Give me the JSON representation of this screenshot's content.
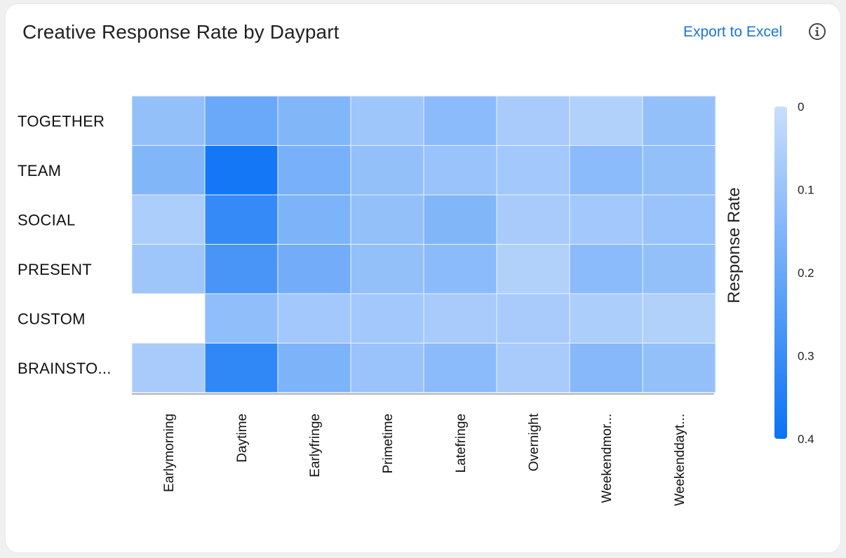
{
  "header": {
    "title": "Creative Response Rate by Daypart",
    "export_label": "Export to Excel",
    "info_icon": "info-circle-icon"
  },
  "chart_data": {
    "type": "heatmap",
    "title": "Creative Response Rate by Daypart",
    "rows": [
      "TOGETHER",
      "TEAM",
      "SOCIAL",
      "PRESENT",
      "CUSTOM",
      "BRAINSTO..."
    ],
    "columns": [
      "Earlymorning",
      "Daytime",
      "Earlyfringe",
      "Primetime",
      "Latefringe",
      "Overnight",
      "Weekendmor...",
      "Weekenddayt..."
    ],
    "values": [
      [
        0.11,
        0.2,
        0.15,
        0.09,
        0.13,
        0.07,
        0.05,
        0.11
      ],
      [
        0.15,
        0.38,
        0.17,
        0.11,
        0.1,
        0.08,
        0.13,
        0.11
      ],
      [
        0.06,
        0.31,
        0.16,
        0.11,
        0.15,
        0.07,
        0.08,
        0.1
      ],
      [
        0.09,
        0.27,
        0.18,
        0.11,
        0.13,
        0.05,
        0.13,
        0.11
      ],
      [
        null,
        0.12,
        0.08,
        0.08,
        0.07,
        0.07,
        0.06,
        0.05
      ],
      [
        0.07,
        0.32,
        0.16,
        0.1,
        0.13,
        0.07,
        0.14,
        0.11
      ]
    ],
    "colorbar": {
      "label": "Response Rate",
      "range": [
        0,
        0.4
      ],
      "ticks": [
        "0",
        "0.1",
        "0.2",
        "0.3",
        "0.4"
      ],
      "color_low": "#c9defc",
      "color_high": "#0a72f5"
    }
  }
}
